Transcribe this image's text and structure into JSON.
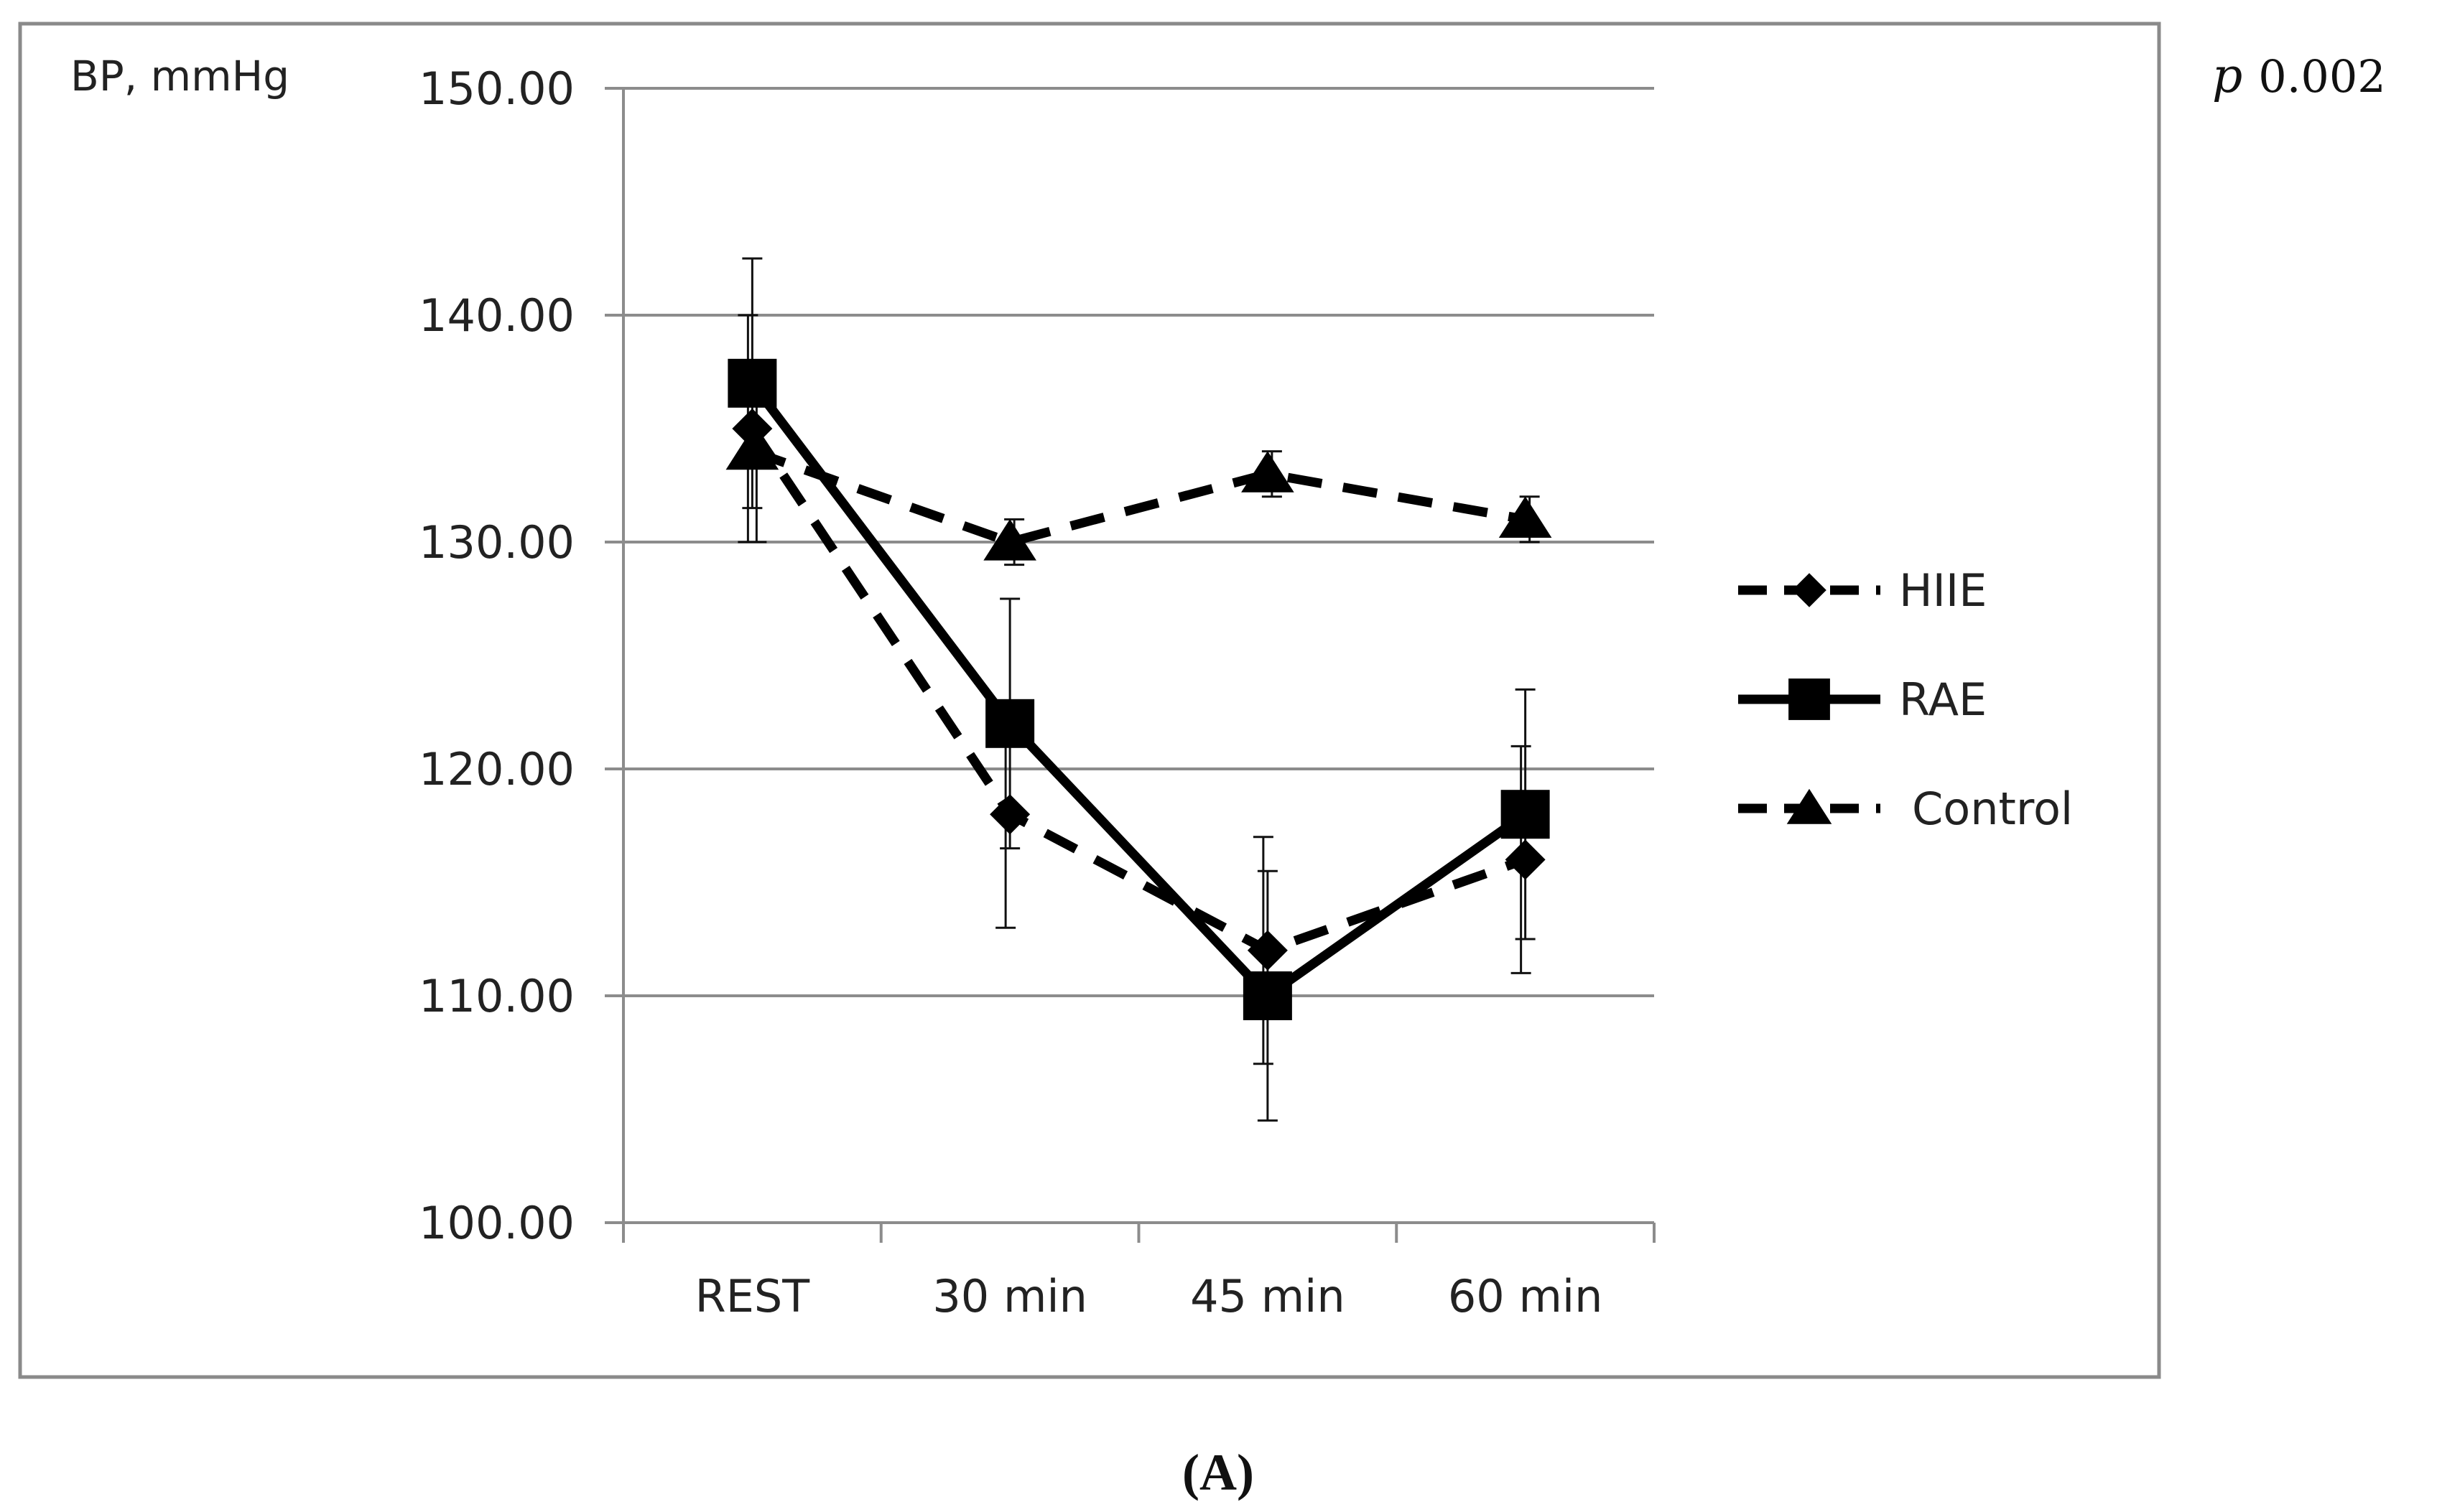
{
  "chart_data": {
    "type": "line",
    "ylabel": "BP, mmHg",
    "ylim": [
      100,
      150
    ],
    "yticks": [
      100,
      110,
      120,
      130,
      140,
      150
    ],
    "ytick_labels": [
      "100.00",
      "110.00",
      "120.00",
      "130.00",
      "140.00",
      "150.00"
    ],
    "categories": [
      "REST",
      "30 min",
      "45 min",
      "60 min"
    ],
    "grid": "horizontal",
    "legend_position": "right",
    "series": [
      {
        "name": "HIIE",
        "line_style": "dashed",
        "marker": "diamond",
        "values": [
          135,
          118,
          112,
          116
        ],
        "error": [
          5,
          5,
          5,
          5
        ]
      },
      {
        "name": "RAE",
        "line_style": "solid",
        "marker": "square",
        "values": [
          137,
          122,
          110,
          118
        ],
        "error": [
          5.5,
          5.5,
          5.5,
          5.5
        ]
      },
      {
        "name": "Control",
        "line_style": "dashed",
        "marker": "triangle",
        "values": [
          134,
          130,
          133,
          131
        ],
        "error": [
          4,
          1,
          1,
          1
        ]
      }
    ],
    "annotation_p_italic": "p",
    "annotation_p_value": "0.002",
    "caption": "(A)"
  }
}
